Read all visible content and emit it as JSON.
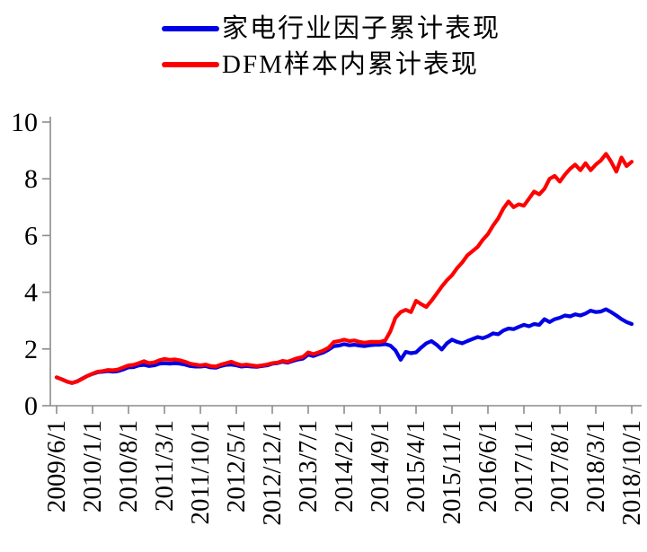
{
  "chart_data": {
    "type": "line",
    "title": "",
    "xlabel": "",
    "ylabel": "",
    "grid": false,
    "legend_position": "top-center",
    "axis_color": "#8c8c8c",
    "text_color": "#000000",
    "ylim": [
      0,
      10
    ],
    "y_ticks": [
      0,
      2,
      4,
      6,
      8,
      10
    ],
    "x_tick_labels": [
      "2009/6/1",
      "2010/1/1",
      "2010/8/1",
      "2011/3/1",
      "2011/10/1",
      "2012/5/1",
      "2012/12/1",
      "2013/7/1",
      "2014/2/1",
      "2014/9/1",
      "2015/4/1",
      "2015/11/1",
      "2016/6/1",
      "2017/1/1",
      "2017/8/1",
      "2018/3/1",
      "2018/10/1"
    ],
    "x_start": "2009/6",
    "x_end": "2018/10",
    "x_step": "monthly",
    "series": [
      {
        "name": "家电行业因子累计表现",
        "color": "#0000E6",
        "values": [
          1.0,
          0.93,
          0.85,
          0.8,
          0.86,
          0.96,
          1.05,
          1.12,
          1.18,
          1.2,
          1.22,
          1.2,
          1.22,
          1.28,
          1.35,
          1.36,
          1.42,
          1.44,
          1.4,
          1.42,
          1.48,
          1.5,
          1.48,
          1.5,
          1.48,
          1.45,
          1.4,
          1.38,
          1.38,
          1.4,
          1.35,
          1.34,
          1.4,
          1.44,
          1.45,
          1.42,
          1.38,
          1.4,
          1.38,
          1.37,
          1.4,
          1.42,
          1.48,
          1.5,
          1.55,
          1.52,
          1.58,
          1.63,
          1.66,
          1.8,
          1.75,
          1.82,
          1.88,
          1.98,
          2.1,
          2.12,
          2.17,
          2.13,
          2.15,
          2.12,
          2.1,
          2.13,
          2.15,
          2.15,
          2.17,
          2.12,
          1.95,
          1.62,
          1.9,
          1.85,
          1.88,
          2.05,
          2.2,
          2.28,
          2.15,
          1.98,
          2.2,
          2.33,
          2.25,
          2.2,
          2.28,
          2.35,
          2.42,
          2.38,
          2.45,
          2.55,
          2.52,
          2.65,
          2.72,
          2.7,
          2.78,
          2.85,
          2.8,
          2.88,
          2.85,
          3.05,
          2.95,
          3.05,
          3.1,
          3.18,
          3.15,
          3.22,
          3.18,
          3.25,
          3.35,
          3.3,
          3.32,
          3.4,
          3.3,
          3.18,
          3.05,
          2.95,
          2.88
        ]
      },
      {
        "name": "DFM样本内累计表现",
        "color": "#FF0000",
        "values": [
          1.0,
          0.93,
          0.85,
          0.8,
          0.85,
          0.95,
          1.05,
          1.13,
          1.2,
          1.22,
          1.26,
          1.25,
          1.28,
          1.35,
          1.42,
          1.44,
          1.5,
          1.57,
          1.5,
          1.53,
          1.6,
          1.65,
          1.62,
          1.63,
          1.6,
          1.55,
          1.48,
          1.45,
          1.42,
          1.45,
          1.4,
          1.38,
          1.45,
          1.5,
          1.55,
          1.48,
          1.43,
          1.45,
          1.42,
          1.4,
          1.42,
          1.45,
          1.5,
          1.52,
          1.58,
          1.55,
          1.62,
          1.68,
          1.72,
          1.88,
          1.82,
          1.88,
          1.95,
          2.05,
          2.25,
          2.28,
          2.33,
          2.28,
          2.3,
          2.25,
          2.22,
          2.25,
          2.25,
          2.25,
          2.3,
          2.62,
          3.1,
          3.3,
          3.38,
          3.3,
          3.7,
          3.58,
          3.48,
          3.7,
          3.95,
          4.2,
          4.42,
          4.6,
          4.85,
          5.05,
          5.3,
          5.45,
          5.6,
          5.85,
          6.05,
          6.35,
          6.6,
          6.95,
          7.2,
          7.0,
          7.1,
          7.05,
          7.3,
          7.55,
          7.45,
          7.65,
          8.0,
          8.1,
          7.9,
          8.15,
          8.35,
          8.5,
          8.3,
          8.55,
          8.3,
          8.5,
          8.65,
          8.88,
          8.6,
          8.25,
          8.75,
          8.45,
          8.6
        ]
      }
    ]
  }
}
